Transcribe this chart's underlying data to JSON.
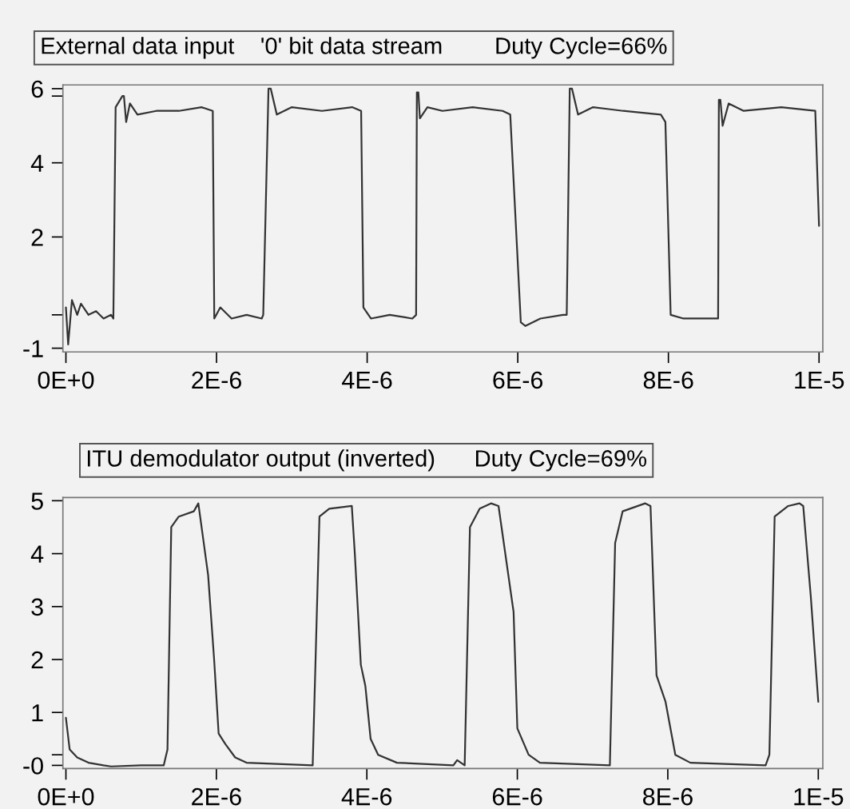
{
  "chart_data": [
    {
      "type": "line",
      "title": "External data input    '0' bit data stream        Duty Cycle=66%",
      "xlim": [
        -4e-08,
        1.005e-05
      ],
      "ylim": [
        -1.1,
        6.1
      ],
      "xticks": [
        {
          "value": 0,
          "label": "0E+0"
        },
        {
          "value": 2e-06,
          "label": "2E-6"
        },
        {
          "value": 4e-06,
          "label": "4E-6"
        },
        {
          "value": 6e-06,
          "label": "6E-6"
        },
        {
          "value": 8e-06,
          "label": "8E-6"
        },
        {
          "value": 1e-05,
          "label": "1E-5"
        }
      ],
      "yticks": [
        -1,
        {
          "value": -0.1,
          "label": null
        },
        2,
        4,
        {
          "value": 5.8,
          "label": null
        },
        6
      ],
      "series": [
        {
          "color": "#333333",
          "x": [
            0,
            3e-08,
            8e-08,
            1.5e-07,
            2e-07,
            3e-07,
            4e-07,
            5e-07,
            6e-07,
            6.3e-07,
            6.6e-07,
            7.5e-07,
            7.7e-07,
            8e-07,
            8.5e-07,
            9.5e-07,
            1.2e-06,
            1.5e-06,
            1.8e-06,
            1.95e-06,
            1.97e-06,
            2.05e-06,
            2.2e-06,
            2.4e-06,
            2.6e-06,
            2.62e-06,
            2.69e-06,
            2.72e-06,
            2.8e-06,
            3e-06,
            3.4e-06,
            3.8e-06,
            3.92e-06,
            3.95e-06,
            4.05e-06,
            4.3e-06,
            4.6e-06,
            4.65e-06,
            4.66e-06,
            4.68e-06,
            4.7e-06,
            4.8e-06,
            5e-06,
            5.4e-06,
            5.8e-06,
            5.9e-06,
            6.04e-06,
            6.1e-06,
            6.3e-06,
            6.6e-06,
            6.65e-06,
            6.69e-06,
            6.72e-06,
            6.8e-06,
            7e-06,
            7.4e-06,
            7.9e-06,
            7.96e-06,
            8.03e-06,
            8.2e-06,
            8.5e-06,
            8.66e-06,
            8.67e-06,
            8.69e-06,
            8.72e-06,
            8.8e-06,
            9e-06,
            9.5e-06,
            9.95e-06,
            1e-05
          ],
          "values": [
            0.1,
            -0.9,
            0.3,
            -0.1,
            0.2,
            -0.1,
            0.0,
            -0.2,
            -0.1,
            -0.2,
            5.5,
            5.8,
            5.8,
            5.1,
            5.6,
            5.3,
            5.4,
            5.4,
            5.5,
            5.4,
            -0.2,
            0.1,
            -0.2,
            -0.1,
            -0.2,
            -0.1,
            6.0,
            6.0,
            5.3,
            5.5,
            5.4,
            5.5,
            5.4,
            0.1,
            -0.2,
            -0.1,
            -0.2,
            -0.1,
            5.9,
            5.9,
            5.2,
            5.5,
            5.4,
            5.5,
            5.4,
            5.3,
            -0.3,
            -0.4,
            -0.2,
            -0.1,
            -0.1,
            6.0,
            6.0,
            5.3,
            5.5,
            5.4,
            5.3,
            5.1,
            -0.1,
            -0.2,
            -0.2,
            -0.2,
            5.7,
            5.7,
            5.0,
            5.6,
            5.4,
            5.5,
            5.4,
            2.3
          ]
        }
      ]
    },
    {
      "type": "line",
      "title": "ITU demodulator output (inverted)      Duty Cycle=69%",
      "xlim": [
        -4e-08,
        1.006e-05
      ],
      "ylim": [
        -0.06,
        5.06
      ],
      "xticks": [
        {
          "value": 0,
          "label": "0E+0"
        },
        {
          "value": 2e-06,
          "label": "2E-6"
        },
        {
          "value": 4e-06,
          "label": "4E-6"
        },
        {
          "value": 6e-06,
          "label": "6E-6"
        },
        {
          "value": 8e-06,
          "label": "8E-6"
        },
        {
          "value": 1e-05,
          "label": "1E-5"
        }
      ],
      "yticks": [
        {
          "value": 0,
          "label": "-0"
        },
        {
          "value": 0.2,
          "label": null
        },
        1,
        2,
        3,
        4,
        5
      ],
      "series": [
        {
          "color": "#333333",
          "x": [
            0,
            5e-08,
            1.5e-07,
            3e-07,
            5e-07,
            6e-07,
            1e-06,
            1.3e-06,
            1.35e-06,
            1.4e-06,
            1.5e-06,
            1.7e-06,
            1.76e-06,
            1.89e-06,
            1.97e-06,
            2.03e-06,
            2.12e-06,
            2.25e-06,
            2.4e-06,
            3.28e-06,
            3.37e-06,
            3.5e-06,
            3.8e-06,
            3.84e-06,
            3.92e-06,
            3.98e-06,
            4.05e-06,
            4.15e-06,
            4.4e-06,
            5.15e-06,
            5.2e-06,
            5.3e-06,
            5.37e-06,
            5.5e-06,
            5.65e-06,
            5.75e-06,
            5.95e-06,
            6e-06,
            6.15e-06,
            6.3e-06,
            7.23e-06,
            7.3e-06,
            7.4e-06,
            7.7e-06,
            7.77e-06,
            7.85e-06,
            7.97e-06,
            8.1e-06,
            8.3e-06,
            9.3e-06,
            9.35e-06,
            9.42e-06,
            9.6e-06,
            9.75e-06,
            9.8e-06,
            9.9e-06,
            1e-05
          ],
          "values": [
            0.9,
            0.3,
            0.15,
            0.05,
            0.0,
            -0.02,
            0.0,
            0.0,
            0.3,
            4.5,
            4.7,
            4.8,
            4.95,
            3.6,
            2.0,
            0.6,
            0.4,
            0.15,
            0.05,
            0.0,
            4.7,
            4.85,
            4.9,
            4.0,
            1.9,
            1.5,
            0.5,
            0.2,
            0.05,
            0.0,
            0.1,
            0.0,
            4.5,
            4.85,
            4.95,
            4.9,
            2.9,
            0.7,
            0.2,
            0.05,
            0.0,
            4.2,
            4.8,
            4.95,
            4.9,
            1.7,
            1.2,
            0.2,
            0.05,
            0.0,
            0.2,
            4.7,
            4.9,
            4.95,
            4.9,
            3.2,
            1.2
          ]
        }
      ]
    }
  ]
}
